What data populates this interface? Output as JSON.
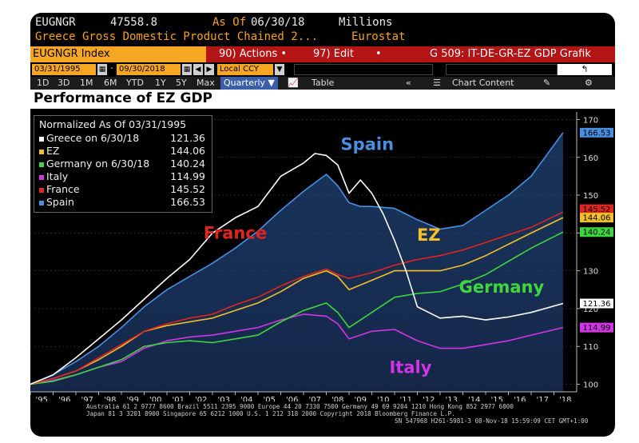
{
  "header": {
    "ticker": "EUGNGR",
    "last_value": "47558.8",
    "as_of_label": "As Of",
    "as_of_date": "06/30/18",
    "units": "Millions",
    "description": "Greece Gross Domestic Product Chained 2...",
    "source": "Eurostat"
  },
  "toolbar": {
    "index_label": "EUGNGR Index",
    "actions_label": "90) Actions •",
    "edit_label": "97) Edit",
    "edit_arrow": "•",
    "page_label": "G 509: IT-DE-GR-EZ GDP Grafik",
    "back_icon": "return-arrow-icon"
  },
  "range": {
    "start": "03/31/1995",
    "end": "09/30/2018",
    "currency": "Local CCY"
  },
  "periods": [
    "1D",
    "3D",
    "1M",
    "6M",
    "YTD",
    "1Y",
    "5Y",
    "Max"
  ],
  "period_select": "Quarterly ▼",
  "view_table": "Table",
  "chart_content_label": "Chart Content",
  "colors": {
    "background": "#000000",
    "amber": "#f5a623",
    "greece": "#ffffff",
    "ez": "#f3c02c",
    "germany": "#3ed63e",
    "italy": "#d433e6",
    "france": "#e0241e",
    "spain": "#4a8ee0"
  },
  "chart_data": {
    "type": "line",
    "title": "Performance of EZ GDP",
    "x_tick_labels": [
      "'95",
      "'96",
      "'97",
      "'98",
      "'99",
      "'00",
      "'01",
      "'02",
      "'03",
      "'04",
      "'05",
      "'06",
      "'07",
      "'08",
      "'09",
      "'10",
      "'11",
      "'12",
      "'13",
      "'14",
      "'15",
      "'16",
      "'17",
      "'18"
    ],
    "xlim": [
      1995.0,
      2019.0
    ],
    "ylim": [
      98,
      172
    ],
    "y_ticks": [
      100,
      110,
      120,
      130,
      140,
      150,
      160,
      170
    ],
    "legend_header": "Normalized As Of 03/31/1995",
    "legend": [
      {
        "name": "Greece on 6/30/18",
        "value": "121.36"
      },
      {
        "name": "EZ",
        "value": "144.06"
      },
      {
        "name": "Germany on 6/30/18",
        "value": "140.24"
      },
      {
        "name": "Italy",
        "value": "114.99"
      },
      {
        "name": "France",
        "value": "145.52"
      },
      {
        "name": "Spain",
        "value": "166.53"
      }
    ],
    "last_value_tags": [
      {
        "series": "spain",
        "value": "166.53"
      },
      {
        "series": "france",
        "value": "145.52"
      },
      {
        "series": "ez",
        "value": "144.06"
      },
      {
        "series": "germany",
        "value": "140.24"
      },
      {
        "series": "greece",
        "value": "121.36"
      },
      {
        "series": "italy",
        "value": "114.99"
      }
    ],
    "annotations": [
      {
        "text": "Spain",
        "series": "spain",
        "x": 2009.8,
        "y": 162.0
      },
      {
        "text": "France",
        "series": "france",
        "x": 2004.0,
        "y": 138.5
      },
      {
        "text": "EZ",
        "series": "ez",
        "x": 2012.5,
        "y": 138.0
      },
      {
        "text": "Germany",
        "series": "germany",
        "x": 2015.7,
        "y": 124.2
      },
      {
        "text": "Italy",
        "series": "italy",
        "x": 2011.7,
        "y": 103.0
      }
    ],
    "series": [
      {
        "key": "spain",
        "name": "Spain",
        "color": "#4a8ee0",
        "x": [
          1995,
          1996,
          1997,
          1998,
          1999,
          2000,
          2001,
          2002,
          2003,
          2004,
          2005,
          2006,
          2007,
          2008,
          2008.5,
          2009,
          2009.5,
          2010,
          2011,
          2012,
          2013,
          2014,
          2015,
          2016,
          2017,
          2018.4
        ],
        "y": [
          100,
          102.5,
          106,
          110,
          115,
          120.5,
          125,
          128.5,
          132,
          136,
          140.5,
          146,
          151,
          155.5,
          152.5,
          148,
          147,
          147,
          146.5,
          143.5,
          141,
          142,
          146,
          150,
          155,
          166.53
        ]
      },
      {
        "key": "greece",
        "name": "Greece on 6/30/18",
        "color": "#ffffff",
        "x": [
          1995,
          1996,
          1997,
          1998,
          1999,
          2000,
          2001,
          2002,
          2003,
          2004,
          2005,
          2006,
          2007,
          2007.5,
          2008,
          2008.5,
          2009,
          2009.5,
          2010,
          2010.5,
          2011,
          2011.5,
          2012,
          2013,
          2014,
          2015,
          2016,
          2017,
          2018.4
        ],
        "y": [
          100,
          102.5,
          107,
          112,
          117,
          122.5,
          128,
          133,
          140,
          144,
          147,
          155,
          158.5,
          161,
          160.5,
          158,
          150.5,
          154,
          150.5,
          145,
          138,
          130,
          120.5,
          117.5,
          118,
          117,
          117.8,
          119,
          121.36
        ]
      },
      {
        "key": "france",
        "name": "France",
        "color": "#e0241e",
        "x": [
          1995,
          1996,
          1997,
          1998,
          1999,
          2000,
          2001,
          2002,
          2003,
          2004,
          2005,
          2006,
          2007,
          2008,
          2008.5,
          2009,
          2010,
          2011,
          2012,
          2013,
          2014,
          2015,
          2016,
          2017,
          2018.4
        ],
        "y": [
          100,
          101.5,
          103.5,
          107,
          110.5,
          114,
          116,
          117.5,
          118.5,
          121,
          123,
          126,
          128.5,
          130.5,
          129,
          128,
          129.5,
          131.5,
          133,
          134,
          135.5,
          137.5,
          139.5,
          141.5,
          145.52
        ]
      },
      {
        "key": "ez",
        "name": "EZ",
        "color": "#f3c02c",
        "x": [
          1995,
          1996,
          1997,
          1998,
          1999,
          2000,
          2001,
          2002,
          2003,
          2004,
          2005,
          2006,
          2007,
          2008,
          2008.5,
          2009,
          2010,
          2011,
          2012,
          2013,
          2014,
          2015,
          2016,
          2017,
          2018.4
        ],
        "y": [
          100,
          101.5,
          103.5,
          106.5,
          110,
          114,
          115.5,
          116.5,
          117.5,
          119.5,
          121.5,
          124.5,
          128,
          130,
          128.5,
          125,
          127.5,
          130,
          130,
          130,
          131.5,
          134,
          137,
          140,
          144.06
        ]
      },
      {
        "key": "germany",
        "name": "Germany on 6/30/18",
        "color": "#3ed63e",
        "x": [
          1995,
          1996,
          1997,
          1998,
          1999,
          2000,
          2001,
          2002,
          2003,
          2004,
          2005,
          2006,
          2007,
          2008,
          2008.5,
          2009,
          2010,
          2011,
          2012,
          2013,
          2014,
          2015,
          2016,
          2017,
          2018.4
        ],
        "y": [
          100,
          100.8,
          102.5,
          104.5,
          106.5,
          110,
          111,
          111.5,
          111,
          112,
          113,
          116.5,
          119.5,
          121.5,
          119,
          115,
          119,
          123,
          124,
          124.5,
          126.5,
          129,
          132.5,
          136,
          140.24
        ]
      },
      {
        "key": "italy",
        "name": "Italy",
        "color": "#d433e6",
        "x": [
          1995,
          1996,
          1997,
          1998,
          1999,
          2000,
          2001,
          2002,
          2003,
          2004,
          2005,
          2006,
          2007,
          2008,
          2008.5,
          2009,
          2010,
          2011,
          2012,
          2013,
          2014,
          2015,
          2016,
          2017,
          2018.4
        ],
        "y": [
          100,
          101,
          102.5,
          104.5,
          106,
          109.5,
          111.5,
          112.5,
          113,
          114,
          115,
          117,
          118.5,
          118,
          116,
          112,
          114,
          114.5,
          111.5,
          109.5,
          109.5,
          110.5,
          111.5,
          113,
          114.99
        ]
      }
    ]
  },
  "footer": {
    "line1": "Australia 61 2 9777 8600 Brazil 5511 2395 9000 Europe 44 20 7330 7500 Germany 49 69 9204 1210 Hong Kong 852 2977 6000",
    "line2": "Japan 81 3 3201 8900         Singapore 65 6212 1000         U.S. 1 212 318 2000             Copyright 2018 Bloomberg Finance L.P.",
    "line3": "SN 547968 H261-5981-3 08-Nov-18 15:59:09 CET   GMT+1:00"
  }
}
